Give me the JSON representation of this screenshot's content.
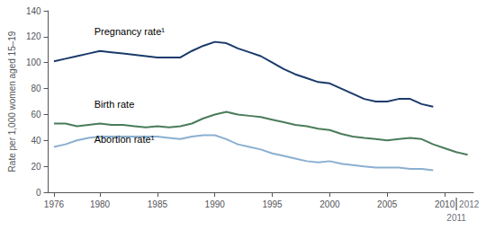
{
  "chart_data": {
    "type": "line",
    "y_label": "Rate per 1,000 women aged 15–19",
    "xlim": [
      1975.5,
      2012.5
    ],
    "xticks": [
      1976,
      1980,
      1985,
      1990,
      1995,
      2000,
      2005,
      2010
    ],
    "ylim": [
      0,
      140
    ],
    "yticks": [
      0,
      20,
      40,
      60,
      80,
      100,
      120,
      140
    ],
    "grid": false,
    "series": [
      {
        "color": "#1a3a6b",
        "x": [
          1976,
          1977,
          1978,
          1979,
          1980,
          1981,
          1982,
          1983,
          1984,
          1985,
          1986,
          1987,
          1988,
          1989,
          1990,
          1991,
          1992,
          1993,
          1994,
          1995,
          1996,
          1997,
          1998,
          1999,
          2000,
          2001,
          2002,
          2003,
          2004,
          2005,
          2006,
          2007,
          2008,
          2009
        ],
        "values": [
          101,
          103,
          105,
          107,
          109,
          108,
          107,
          106,
          105,
          104,
          104,
          104,
          109,
          113,
          116,
          115,
          111,
          108,
          105,
          100,
          95,
          91,
          88,
          85,
          84,
          80,
          76,
          72,
          70,
          70,
          72,
          72,
          68,
          66
        ]
      },
      {
        "color": "#4a7c59",
        "x": [
          1976,
          1977,
          1978,
          1979,
          1980,
          1981,
          1982,
          1983,
          1984,
          1985,
          1986,
          1987,
          1988,
          1989,
          1990,
          1991,
          1992,
          1993,
          1994,
          1995,
          1996,
          1997,
          1998,
          1999,
          2000,
          2001,
          2002,
          2003,
          2004,
          2005,
          2006,
          2007,
          2008,
          2009,
          2010,
          2011,
          2012
        ],
        "values": [
          53,
          53,
          51,
          52,
          53,
          52,
          52,
          51,
          50,
          51,
          50,
          51,
          53,
          57,
          60,
          62,
          60,
          59,
          58,
          56,
          54,
          52,
          51,
          49,
          48,
          45,
          43,
          42,
          41,
          40,
          41,
          42,
          41,
          37,
          34,
          31,
          29
        ]
      },
      {
        "color": "#8aafd0",
        "x": [
          1976,
          1977,
          1978,
          1979,
          1980,
          1981,
          1982,
          1983,
          1984,
          1985,
          1986,
          1987,
          1988,
          1989,
          1990,
          1991,
          1992,
          1993,
          1994,
          1995,
          1996,
          1997,
          1998,
          1999,
          2000,
          2001,
          2002,
          2003,
          2004,
          2005,
          2006,
          2007,
          2008,
          2009
        ],
        "values": [
          35,
          37,
          40,
          42,
          43,
          43,
          43,
          43,
          43,
          43,
          42,
          41,
          43,
          44,
          44,
          41,
          37,
          35,
          33,
          30,
          28,
          26,
          24,
          23,
          24,
          22,
          21,
          20,
          19,
          19,
          19,
          18,
          18,
          17
        ]
      }
    ],
    "annotations": [
      {
        "text": "Pregnancy rate¹",
        "x": 1979.5,
        "y": 120
      },
      {
        "text": "Birth rate",
        "x": 1979.5,
        "y": 64
      },
      {
        "text": "Abortion rate¹",
        "x": 1979.5,
        "y": 37
      },
      {
        "text": "2012",
        "x": 2010.2
      },
      {
        "text": "2011",
        "x": 2010
      }
    ]
  }
}
